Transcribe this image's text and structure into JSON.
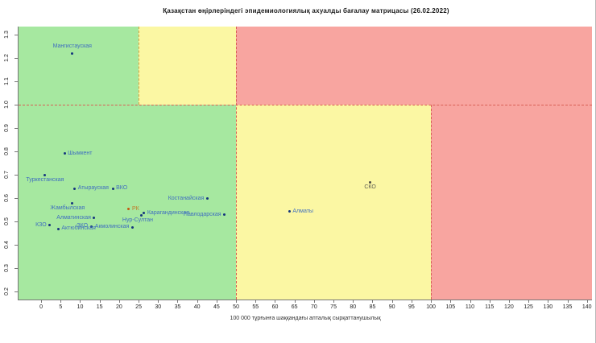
{
  "chart_data": {
    "type": "scatter",
    "title": "Қазақстан өңірлеріндегі эпидемиологиялық ахуалды бағалау матрицасы  (26.02.2022)",
    "xlabel": "100 000 тұрғынға шаққандағы апталық сырқаттанушылық",
    "ylabel": "",
    "xlim": [
      -5.8,
      141.3
    ],
    "ylim": [
      0.166,
      1.334
    ],
    "x_ticks": [
      0,
      5,
      10,
      15,
      20,
      25,
      30,
      35,
      40,
      45,
      50,
      55,
      60,
      65,
      70,
      75,
      80,
      85,
      90,
      95,
      100,
      105,
      110,
      115,
      120,
      125,
      130,
      135,
      140
    ],
    "y_ticks": [
      0.2,
      0.3,
      0.4,
      0.5,
      0.6,
      0.7,
      0.8,
      0.9,
      1.0,
      1.1,
      1.2,
      1.3
    ],
    "grid": false,
    "legend": null,
    "region_colors": {
      "green": "#a6e8a0",
      "yellow": "#fbf7a3",
      "red": "#f8a5a0"
    },
    "regions": [
      {
        "name": "green-top-left",
        "x1": -5.8,
        "x2": 25,
        "y1": 1.0,
        "y2": 1.334,
        "color": "green"
      },
      {
        "name": "yellow-top",
        "x1": 25,
        "x2": 50,
        "y1": 1.0,
        "y2": 1.334,
        "color": "yellow"
      },
      {
        "name": "red-top",
        "x1": 50,
        "x2": 141.3,
        "y1": 1.0,
        "y2": 1.334,
        "color": "red"
      },
      {
        "name": "green-bottom",
        "x1": -5.8,
        "x2": 50,
        "y1": 0.166,
        "y2": 1.0,
        "color": "green"
      },
      {
        "name": "yellow-bottom",
        "x1": 50,
        "x2": 100,
        "y1": 0.166,
        "y2": 1.0,
        "color": "yellow"
      },
      {
        "name": "red-bottom",
        "x1": 100,
        "x2": 141.3,
        "y1": 0.166,
        "y2": 1.0,
        "color": "red"
      }
    ],
    "threshold_lines": [
      {
        "orientation": "h",
        "value": 1.0,
        "from": -5.8,
        "to": 141.3,
        "color": "#d85f55"
      },
      {
        "orientation": "v",
        "value": 50,
        "from": 0.166,
        "to": 1.334,
        "color": "#d85f55"
      },
      {
        "orientation": "v",
        "value": 100,
        "from": 0.166,
        "to": 1.0,
        "color": "#d85f55"
      },
      {
        "orientation": "v",
        "value": 25,
        "from": 1.0,
        "to": 1.334,
        "color": "#e0a23e"
      }
    ],
    "point_style": {
      "default_color": "#15357d",
      "default_label_color": "#3f6ebf"
    },
    "points": [
      {
        "label": "Мангистауская",
        "x": 8,
        "y": 1.22,
        "pos": "above"
      },
      {
        "label": "Шымкент",
        "x": 6,
        "y": 0.79,
        "pos": "right"
      },
      {
        "label": "Туркестанская",
        "x": 1,
        "y": 0.7,
        "pos": "below"
      },
      {
        "label": "Атырауская",
        "x": 8.6,
        "y": 0.64,
        "pos": "right"
      },
      {
        "label": "ВКО",
        "x": 18.4,
        "y": 0.64,
        "pos": "right"
      },
      {
        "label": "Жамбылская",
        "x": 8,
        "y": 0.578,
        "pos": "below",
        "label_dx": -6
      },
      {
        "label": "Алматинская",
        "x": 13.6,
        "y": 0.515,
        "pos": "left"
      },
      {
        "label": "РК",
        "x": 22.5,
        "y": 0.552,
        "pos": "right",
        "color": "#c45a11",
        "label_color": "#c07a28"
      },
      {
        "label": "Карагандинская",
        "x": 26.4,
        "y": 0.535,
        "pos": "right"
      },
      {
        "label": "Нур-Султан",
        "x": 25.8,
        "y": 0.527,
        "pos": "below",
        "label_dx": -5
      },
      {
        "label": "Костанайская",
        "x": 42.6,
        "y": 0.597,
        "pos": "left"
      },
      {
        "label": "Павлодарская",
        "x": 47,
        "y": 0.528,
        "pos": "left"
      },
      {
        "label": "Акмолинская",
        "x": 23.4,
        "y": 0.476,
        "pos": "left"
      },
      {
        "label": "ЗКО",
        "x": 12.8,
        "y": 0.479,
        "pos": "left"
      },
      {
        "label": "Актюбинская",
        "x": 4.4,
        "y": 0.468,
        "pos": "right"
      },
      {
        "label": "КЗО",
        "x": 2.2,
        "y": 0.484,
        "pos": "left"
      },
      {
        "label": "Алматы",
        "x": 63.7,
        "y": 0.542,
        "pos": "right"
      },
      {
        "label": "СКО",
        "x": 84.4,
        "y": 0.669,
        "pos": "below",
        "color": "#4d4d45",
        "label_color": "#5c5c52"
      }
    ]
  }
}
